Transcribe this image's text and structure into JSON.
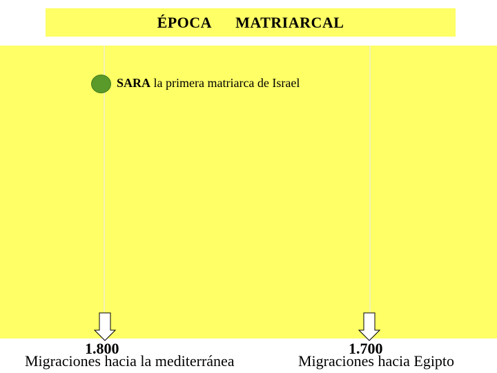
{
  "title": {
    "word1": "ÉPOCA",
    "word2": "MATRIARCAL"
  },
  "event": {
    "name": "SARA",
    "description": "la primera matriarca de Israel",
    "dot_color": "#5a9a2a"
  },
  "markers": [
    {
      "year": "1.800",
      "caption": "Migraciones hacia la mediterránea"
    },
    {
      "year": "1.700",
      "caption": "Migraciones hacia Egipto"
    }
  ],
  "colors": {
    "background": "#ffff66",
    "timeline_line": "#f3f3b3"
  }
}
